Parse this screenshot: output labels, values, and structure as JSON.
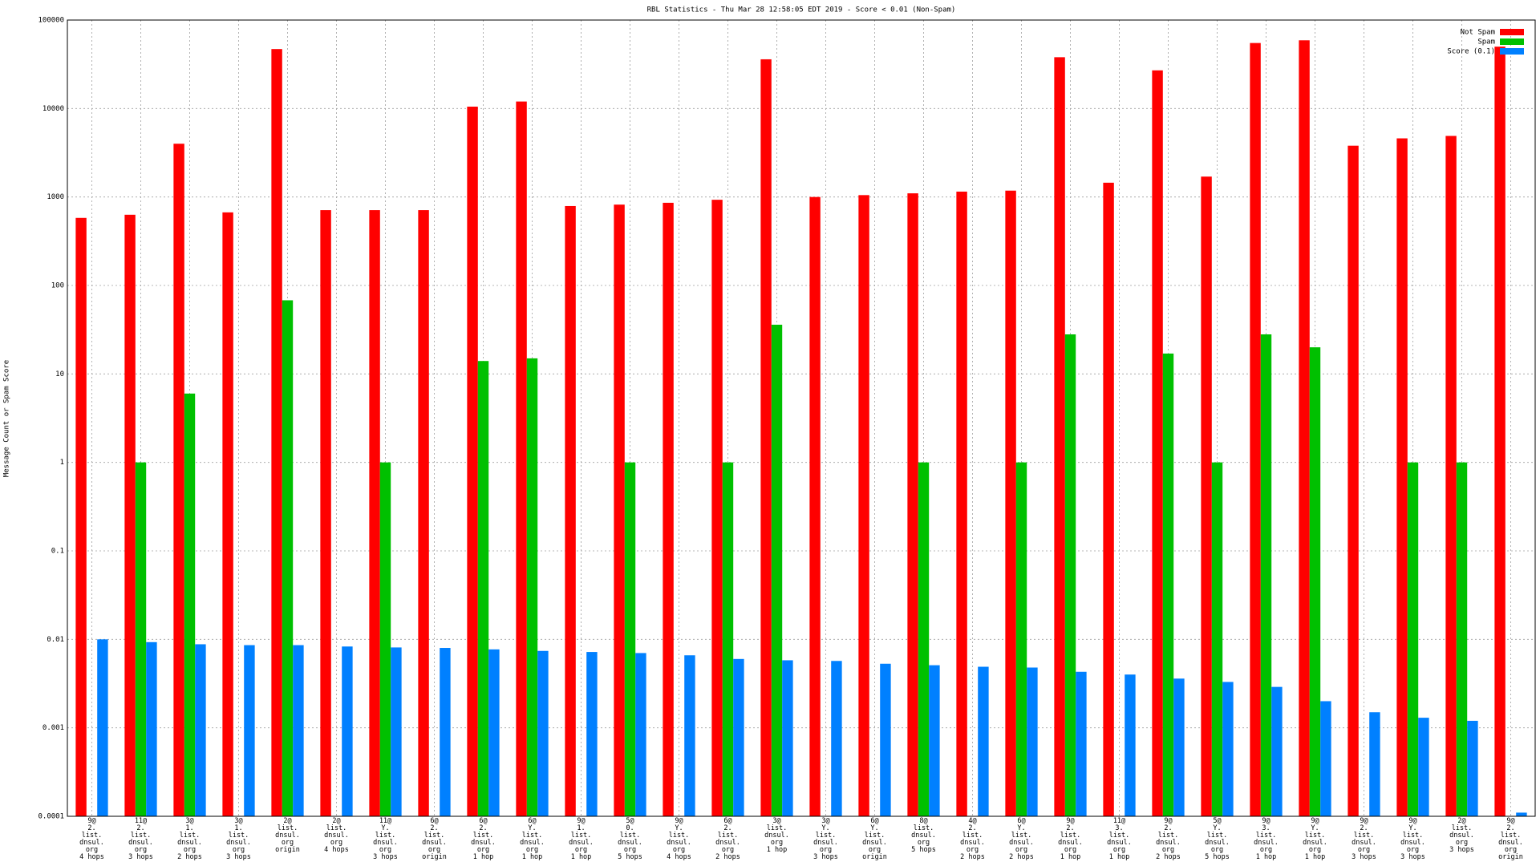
{
  "chart_data": {
    "type": "bar",
    "title": "RBL Statistics - Thu Mar 28 12:58:05 EDT 2019 - Score < 0.01 (Non-Spam)",
    "y_label": "Message Count or Spam Score",
    "log_scale": true,
    "grid": true,
    "legend": "top-right",
    "ylim": [
      0.0001,
      100000
    ],
    "yticks": [
      0.0001,
      0.001,
      0.01,
      0.1,
      1,
      10,
      100,
      1000,
      10000,
      100000
    ],
    "categories": [
      "9@\n2.\nlist.\ndnsul.\norg\n4 hops",
      "11@\n2.\nlist.\ndnsul.\norg\n3 hops",
      "3@\n1.\nlist.\ndnsul.\norg\n2 hops",
      "3@\n1.\nlist.\ndnsul.\norg\n3 hops",
      "2@\nlist.\ndnsul.\norg\norigin",
      "2@\nlist.\ndnsul.\norg\n4 hops",
      "11@\nY.\nlist.\ndnsul.\norg\n3 hops",
      "6@\n2.\nlist.\ndnsul.\norg\norigin",
      "6@\n2.\nlist.\ndnsul.\norg\n1 hop",
      "6@\nY.\nlist.\ndnsul.\norg\n1 hop",
      "9@\n1.\nlist.\ndnsul.\norg\n1 hop",
      "5@\n0.\nlist.\ndnsul.\norg\n5 hops",
      "9@\nY.\nlist.\ndnsul.\norg\n4 hops",
      "6@\n2.\nlist.\ndnsul.\norg\n2 hops",
      "3@\nlist.\ndnsul.\norg\n1 hop",
      "3@\nY.\nlist.\ndnsul.\norg\n3 hops",
      "6@\nY.\nlist.\ndnsul.\norg\norigin",
      "8@\nlist.\ndnsul.\norg\n5 hops",
      "4@\n2.\nlist.\ndnsul.\norg\n2 hops",
      "6@\nY.\nlist.\ndnsul.\norg\n2 hops",
      "9@\n2.\nlist.\ndnsul.\norg\n1 hop",
      "11@\n3.\nlist.\ndnsul.\norg\n1 hop",
      "9@\n2.\nlist.\ndnsul.\norg\n2 hops",
      "5@\nY.\nlist.\ndnsul.\norg\n5 hops",
      "9@\n3.\nlist.\ndnsul.\norg\n1 hop",
      "9@\nY.\nlist.\ndnsul.\norg\n1 hop",
      "9@\n2.\nlist.\ndnsul.\norg\n3 hops",
      "9@\nY.\nlist.\ndnsul.\norg\n3 hops",
      "2@\nlist.\ndnsul.\norg\n3 hops",
      "9@\n2.\nlist.\ndnsul.\norg\norigin"
    ],
    "series": [
      {
        "name": "Not Spam",
        "color": "#ff0000",
        "values": [
          580,
          630,
          4000,
          670,
          47000,
          710,
          710,
          710,
          10500,
          12000,
          790,
          820,
          860,
          930,
          36000,
          1000,
          1050,
          1100,
          1150,
          1180,
          38000,
          1450,
          27000,
          1700,
          55000,
          59000,
          3800,
          4600,
          4900,
          50000
        ]
      },
      {
        "name": "Spam",
        "color": "#00c000",
        "values": [
          null,
          1,
          6,
          null,
          68,
          null,
          1,
          null,
          14,
          15,
          null,
          1,
          null,
          1,
          36,
          null,
          null,
          1,
          null,
          1,
          28,
          null,
          17,
          1,
          28,
          20,
          null,
          1,
          1,
          null
        ]
      },
      {
        "name": "Score (0.1)",
        "color": "#0080ff",
        "values": [
          0.01,
          0.0093,
          0.0088,
          0.0086,
          0.0086,
          0.0083,
          0.0081,
          0.008,
          0.0077,
          0.0074,
          0.0072,
          0.007,
          0.0066,
          0.006,
          0.0058,
          0.0057,
          0.0053,
          0.0051,
          0.0049,
          0.0048,
          0.0043,
          0.004,
          0.0036,
          0.0033,
          0.0029,
          0.002,
          0.0015,
          0.0013,
          0.0012,
          0.00011
        ]
      }
    ]
  }
}
